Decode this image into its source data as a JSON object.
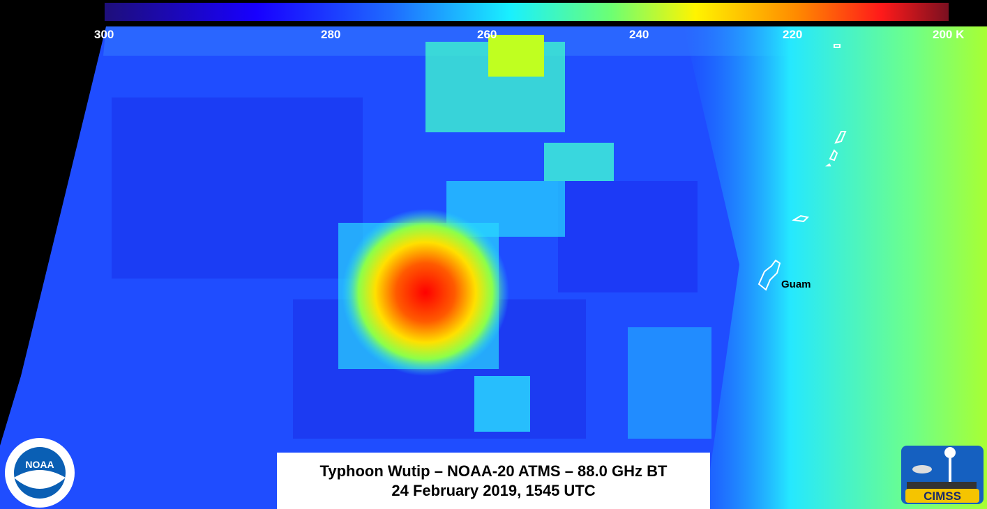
{
  "colorbar": {
    "ticks": [
      "300",
      "280",
      "260",
      "240",
      "220",
      "200 K"
    ],
    "colors": [
      "#1e0f7a",
      "#1800ff",
      "#1f6bff",
      "#19f0ff",
      "#6cff73",
      "#fff400",
      "#ff8a00",
      "#ff1a1a",
      "#7a1020"
    ]
  },
  "map": {
    "place_label": "Guam"
  },
  "caption": {
    "line1": "Typhoon Wutip – NOAA-20 ATMS – 88.0 GHz BT",
    "line2": "24 February 2019, 1545 UTC"
  },
  "logos": {
    "noaa": "NOAA",
    "cimss": "CIMSS"
  }
}
